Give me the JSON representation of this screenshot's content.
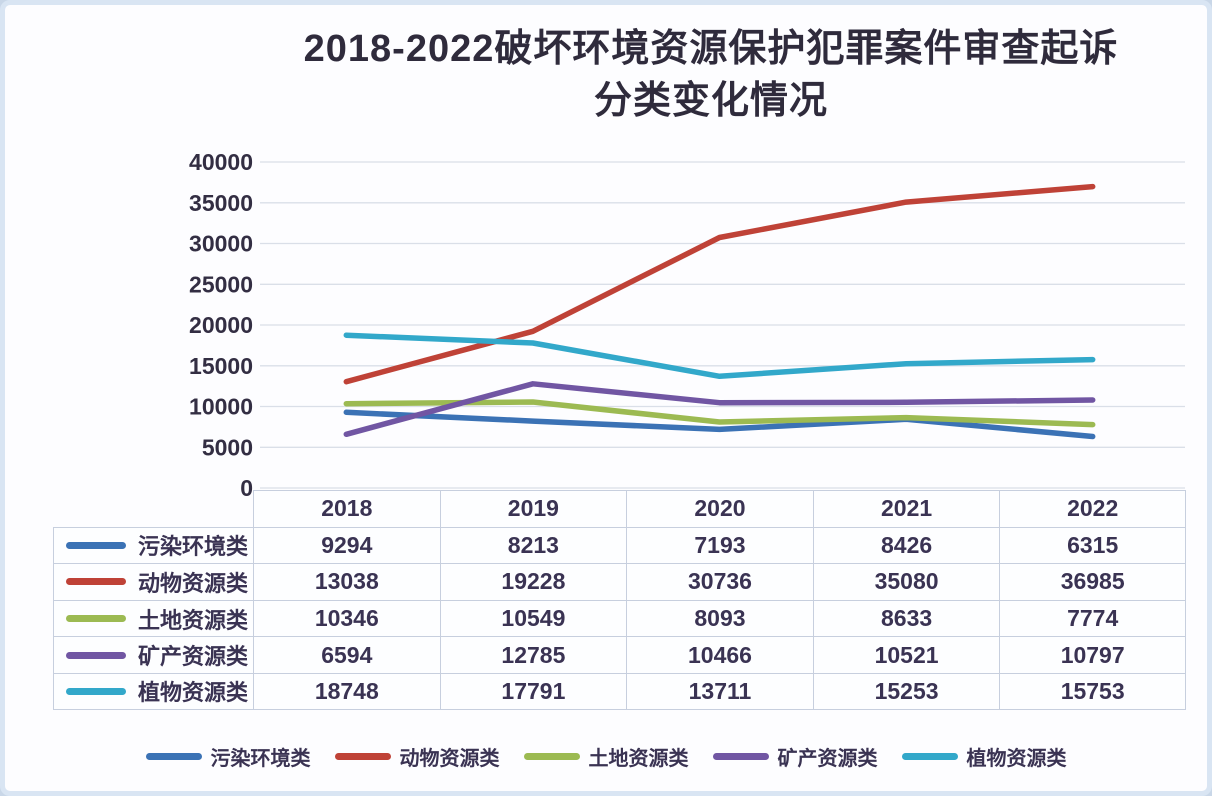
{
  "title": {
    "line1": "2018-2022破坏环境资源保护犯罪案件审查起诉",
    "line2": "分类变化情况"
  },
  "chart_data": {
    "type": "line",
    "title": "2018-2022破坏环境资源保护犯罪案件审查起诉分类变化情况",
    "categories": [
      "2018",
      "2019",
      "2020",
      "2021",
      "2022"
    ],
    "series": [
      {
        "name": "污染环境类",
        "color": "#3B72B5",
        "values": [
          9294,
          8213,
          7193,
          8426,
          6315
        ]
      },
      {
        "name": "动物资源类",
        "color": "#BF4237",
        "values": [
          13038,
          19228,
          30736,
          35080,
          36985
        ]
      },
      {
        "name": "土地资源类",
        "color": "#9CBA52",
        "values": [
          10346,
          10549,
          8093,
          8633,
          7774
        ]
      },
      {
        "name": "矿产资源类",
        "color": "#7156A3",
        "values": [
          6594,
          12785,
          10466,
          10521,
          10797
        ]
      },
      {
        "name": "植物资源类",
        "color": "#32A8CA",
        "values": [
          18748,
          17791,
          13711,
          15253,
          15753
        ]
      }
    ],
    "ylim": [
      0,
      40000
    ],
    "ytick_step": 5000,
    "yticks": [
      "40000",
      "35000",
      "30000",
      "25000",
      "20000",
      "15000",
      "10000",
      "5000",
      "0"
    ],
    "grid": true,
    "legend_position": "bottom",
    "data_table_shown": true
  },
  "colors": {
    "grid": "#DADFE8",
    "axis_text": "#332E43",
    "table_text": "#3A3353",
    "table_border": "#C7CFDE",
    "frame": "#D9E5F3",
    "background": "#FDFDFF"
  }
}
